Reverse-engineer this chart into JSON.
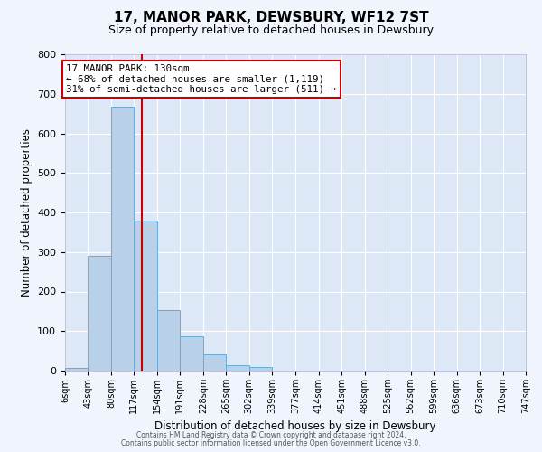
{
  "title": "17, MANOR PARK, DEWSBURY, WF12 7ST",
  "subtitle": "Size of property relative to detached houses in Dewsbury",
  "xlabel": "Distribution of detached houses by size in Dewsbury",
  "ylabel": "Number of detached properties",
  "bar_color": "#b8d0e8",
  "bar_edge_color": "#6aaad4",
  "fig_facecolor": "#f0f4fc",
  "ax_facecolor": "#dce8f5",
  "bin_edges": [
    6,
    43,
    80,
    117,
    154,
    191,
    228,
    265,
    302,
    339,
    377,
    414,
    451,
    488,
    525,
    562,
    599,
    636,
    673,
    710,
    747
  ],
  "bin_labels": [
    "6sqm",
    "43sqm",
    "80sqm",
    "117sqm",
    "154sqm",
    "191sqm",
    "228sqm",
    "265sqm",
    "302sqm",
    "339sqm",
    "377sqm",
    "414sqm",
    "451sqm",
    "488sqm",
    "525sqm",
    "562sqm",
    "599sqm",
    "636sqm",
    "673sqm",
    "710sqm",
    "747sqm"
  ],
  "bar_heights": [
    8,
    290,
    668,
    380,
    153,
    88,
    42,
    14,
    10,
    0,
    0,
    0,
    0,
    0,
    0,
    0,
    0,
    0,
    0,
    0
  ],
  "vline_x": 130,
  "vline_color": "#cc0000",
  "annotation_title": "17 MANOR PARK: 130sqm",
  "annotation_line1": "← 68% of detached houses are smaller (1,119)",
  "annotation_line2": "31% of semi-detached houses are larger (511) →",
  "ylim": [
    0,
    800
  ],
  "yticks": [
    0,
    100,
    200,
    300,
    400,
    500,
    600,
    700,
    800
  ],
  "footer1": "Contains HM Land Registry data © Crown copyright and database right 2024.",
  "footer2": "Contains public sector information licensed under the Open Government Licence v3.0."
}
